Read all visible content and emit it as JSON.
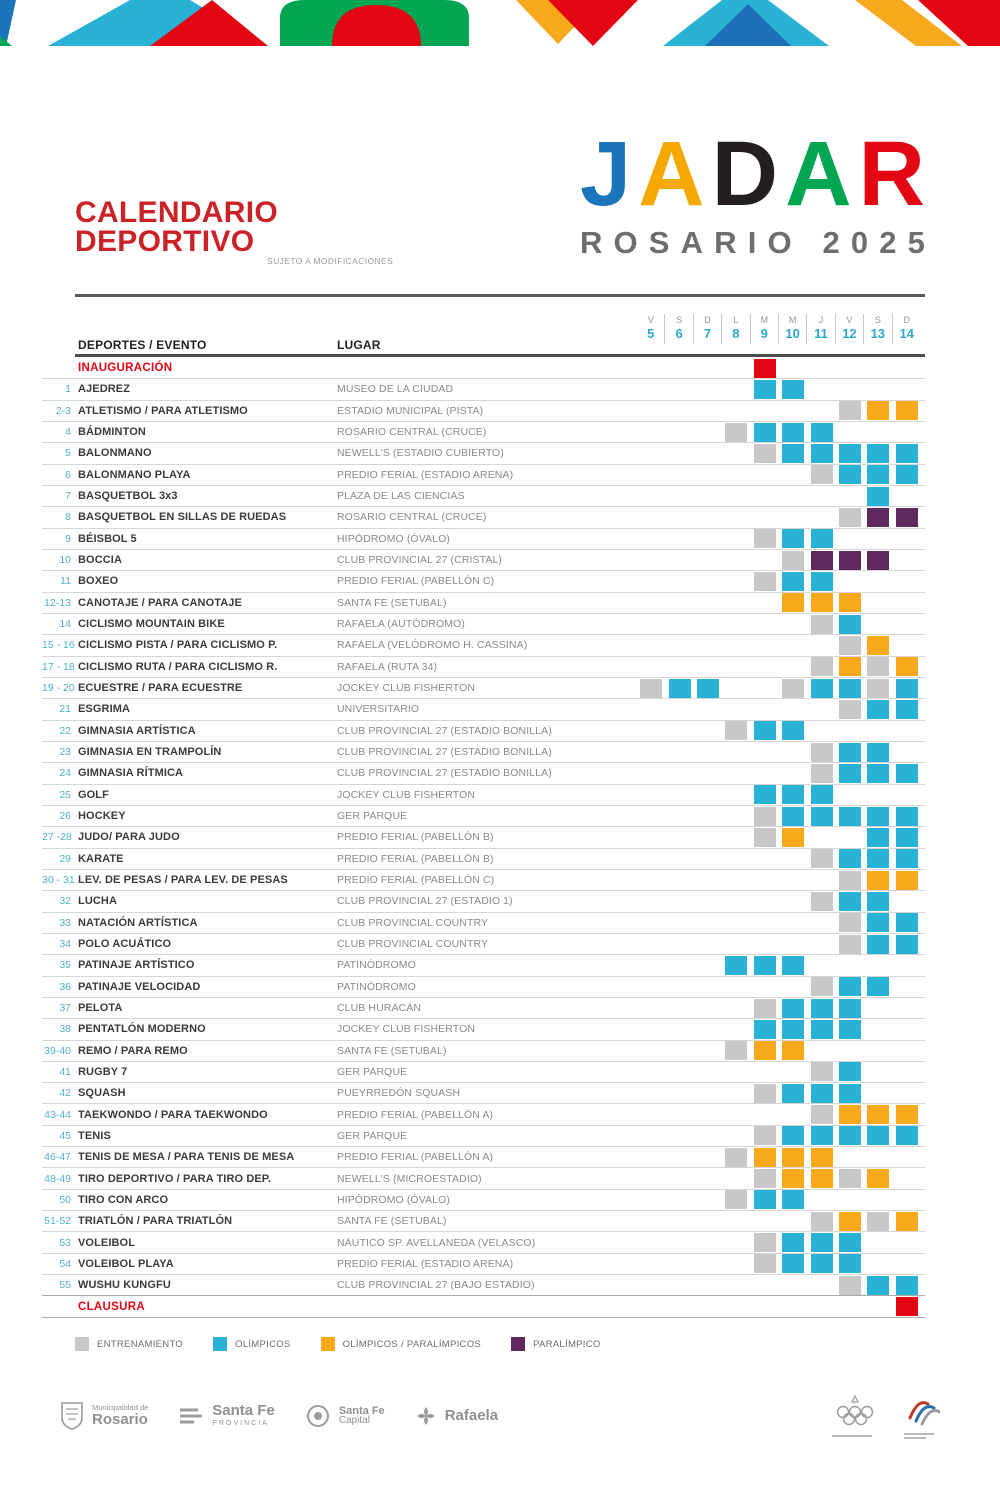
{
  "header": {
    "title_line1": "CALENDARIO",
    "title_line2": "DEPORTIVO",
    "note": "SUJETO A MODIFICACIONES"
  },
  "logo": {
    "letters": [
      {
        "ch": "J",
        "color": "#1B75BB"
      },
      {
        "ch": "A",
        "color": "#F5A800"
      },
      {
        "ch": "D",
        "color": "#231F20"
      },
      {
        "ch": "A",
        "color": "#00A651"
      },
      {
        "ch": "R",
        "color": "#E30613"
      }
    ],
    "subtitle": "ROSARIO 2025"
  },
  "colors": {
    "E": "#C8C8C9",
    "O": "#29B2D5",
    "OP": "#F7A81B",
    "P": "#5E2A5E",
    "R": "#E30613"
  },
  "table": {
    "col_header_deportes": "DEPORTES / EVENTO",
    "col_header_lugar": "LUGAR",
    "days": [
      {
        "dow": "V",
        "num": "5"
      },
      {
        "dow": "S",
        "num": "6"
      },
      {
        "dow": "D",
        "num": "7"
      },
      {
        "dow": "L",
        "num": "8"
      },
      {
        "dow": "M",
        "num": "9"
      },
      {
        "dow": "M",
        "num": "10"
      },
      {
        "dow": "J",
        "num": "11"
      },
      {
        "dow": "V",
        "num": "12"
      },
      {
        "dow": "S",
        "num": "13"
      },
      {
        "dow": "D",
        "num": "14"
      }
    ],
    "rows": [
      {
        "num": "",
        "name": "INAUGURACIÓN",
        "venue": "",
        "special": true,
        "cells": {
          "9": "R"
        }
      },
      {
        "num": "1",
        "name": "AJEDREZ",
        "venue": "MUSEO DE LA CIUDAD",
        "cells": {
          "9": "O",
          "10": "O"
        }
      },
      {
        "num": "2-3",
        "name": "ATLETISMO / PARA ATLETISMO",
        "venue": "ESTADIO MUNICIPAL (PISTA)",
        "cells": {
          "12": "E",
          "13": "OP",
          "14": "OP"
        }
      },
      {
        "num": "4",
        "name": "BÁDMINTON",
        "venue": "ROSARIO CENTRAL (CRUCE)",
        "cells": {
          "8": "E",
          "9": "O",
          "10": "O",
          "11": "O"
        }
      },
      {
        "num": "5",
        "name": "BALONMANO",
        "venue": "NEWELL'S (ESTADIO CUBIERTO)",
        "cells": {
          "9": "E",
          "10": "O",
          "11": "O",
          "12": "O",
          "13": "O",
          "14": "O"
        }
      },
      {
        "num": "6",
        "name": "BALONMANO PLAYA",
        "venue": "PREDIO FERIAL (ESTADIO ARENA)",
        "cells": {
          "11": "E",
          "12": "O",
          "13": "O",
          "14": "O"
        }
      },
      {
        "num": "7",
        "name": "BASQUETBOL 3x3",
        "venue": "PLAZA DE LAS CIENCIAS",
        "cells": {
          "13": "O"
        }
      },
      {
        "num": "8",
        "name": "BASQUETBOL EN SILLAS DE RUEDAS",
        "venue": "ROSARIO CENTRAL (CRUCE)",
        "cells": {
          "12": "E",
          "13": "P",
          "14": "P"
        }
      },
      {
        "num": "9",
        "name": "BÉISBOL 5",
        "venue": "HIPÓDROMO (ÓVALO)",
        "cells": {
          "9": "E",
          "10": "O",
          "11": "O"
        }
      },
      {
        "num": "10",
        "name": "BOCCIA",
        "venue": "CLUB PROVINCIAL 27 (CRISTAL)",
        "cells": {
          "10": "E",
          "11": "P",
          "12": "P",
          "13": "P"
        }
      },
      {
        "num": "11",
        "name": "BOXEO",
        "venue": "PREDIO FERIAL (PABELLÓN C)",
        "cells": {
          "9": "E",
          "10": "O",
          "11": "O"
        }
      },
      {
        "num": "12-13",
        "name": "CANOTAJE / PARA CANOTAJE",
        "venue": "SANTA FE (SETUBAL)",
        "cells": {
          "10": "OP",
          "11": "OP",
          "12": "OP"
        }
      },
      {
        "num": "14",
        "name": "CICLISMO MOUNTAIN BIKE",
        "venue": "RAFAELA (AUTÓDROMO)",
        "cells": {
          "11": "E",
          "12": "O"
        }
      },
      {
        "num": "15 - 16",
        "name": "CICLISMO PISTA / PARA CICLISMO P.",
        "venue": "RAFAELA (VELÓDROMO H. CASSINA)",
        "cells": {
          "12": "E",
          "13": "OP"
        }
      },
      {
        "num": "17 - 18",
        "name": "CICLISMO RUTA / PARA CICLISMO R.",
        "venue": "RAFAELA (RUTA 34)",
        "cells": {
          "11": "E",
          "12": "OP",
          "13": "E",
          "14": "OP"
        }
      },
      {
        "num": "19 - 20",
        "name": "ECUESTRE / PARA ECUESTRE",
        "venue": "JOCKEY CLUB FISHERTON",
        "cells": {
          "5": "E",
          "6": "O",
          "7": "O",
          "10": "E",
          "11": "O",
          "12": "O",
          "13": "E",
          "14": "O"
        }
      },
      {
        "num": "21",
        "name": "ESGRIMA",
        "venue": "UNIVERSITARIO",
        "cells": {
          "12": "E",
          "13": "O",
          "14": "O"
        }
      },
      {
        "num": "22",
        "name": "GIMNASIA ARTÍSTICA",
        "venue": "CLUB PROVINCIAL 27 (ESTADIO BONILLA)",
        "cells": {
          "8": "E",
          "9": "O",
          "10": "O"
        }
      },
      {
        "num": "23",
        "name": "GIMNASIA EN TRAMPOLÍN",
        "venue": "CLUB PROVINCIAL 27 (ESTADIO BONILLA)",
        "cells": {
          "11": "E",
          "12": "O",
          "13": "O"
        }
      },
      {
        "num": "24",
        "name": "GIMNASIA RÍTMICA",
        "venue": "CLUB PROVINCIAL 27 (ESTADIO BONILLA)",
        "cells": {
          "11": "E",
          "12": "O",
          "13": "O",
          "14": "O"
        }
      },
      {
        "num": "25",
        "name": "GOLF",
        "venue": "JOCKEY CLUB FISHERTON",
        "cells": {
          "9": "O",
          "10": "O",
          "11": "O"
        }
      },
      {
        "num": "26",
        "name": "HOCKEY",
        "venue": "GER PARQUE",
        "cells": {
          "9": "E",
          "10": "O",
          "11": "O",
          "12": "O",
          "13": "O",
          "14": "O"
        }
      },
      {
        "num": "27 -28",
        "name": "JUDO/ PARA JUDO",
        "venue": "PREDIO FERIAL (PABELLÓN B)",
        "cells": {
          "9": "E",
          "10": "OP",
          "13": "O",
          "14": "O"
        }
      },
      {
        "num": "29",
        "name": "KARATE",
        "venue": "PREDIO FERIAL (PABELLÓN B)",
        "cells": {
          "11": "E",
          "12": "O",
          "13": "O",
          "14": "O"
        }
      },
      {
        "num": "30 - 31",
        "name": "LEV. DE PESAS / PARA LEV. DE PESAS",
        "venue": "PREDIO FERIAL (PABELLÓN C)",
        "cells": {
          "12": "E",
          "13": "OP",
          "14": "OP"
        }
      },
      {
        "num": "32",
        "name": "LUCHA",
        "venue": "CLUB PROVINCIAL 27 (ESTADIO 1)",
        "cells": {
          "11": "E",
          "12": "O",
          "13": "O"
        }
      },
      {
        "num": "33",
        "name": "NATACIÓN ARTÍSTICA",
        "venue": "CLUB PROVINCIAL COUNTRY",
        "cells": {
          "12": "E",
          "13": "O",
          "14": "O"
        }
      },
      {
        "num": "34",
        "name": "POLO ACUÁTICO",
        "venue": "CLUB PROVINCIAL COUNTRY",
        "cells": {
          "12": "E",
          "13": "O",
          "14": "O"
        }
      },
      {
        "num": "35",
        "name": "PATINAJE ARTÍSTICO",
        "venue": "PATINÓDROMO",
        "cells": {
          "8": "O",
          "9": "O",
          "10": "O"
        }
      },
      {
        "num": "36",
        "name": "PATINAJE VELOCIDAD",
        "venue": "PATINÓDROMO",
        "cells": {
          "11": "E",
          "12": "O",
          "13": "O"
        }
      },
      {
        "num": "37",
        "name": "PELOTA",
        "venue": "CLUB HURACÁN",
        "cells": {
          "9": "E",
          "10": "O",
          "11": "O",
          "12": "O"
        }
      },
      {
        "num": "38",
        "name": "PENTATLÓN MODERNO",
        "venue": "JOCKEY CLUB FISHERTON",
        "cells": {
          "9": "O",
          "10": "O",
          "11": "O",
          "12": "O"
        }
      },
      {
        "num": "39-40",
        "name": "REMO / PARA REMO",
        "venue": "SANTA FE (SETUBAL)",
        "cells": {
          "8": "E",
          "9": "OP",
          "10": "OP"
        }
      },
      {
        "num": "41",
        "name": "RUGBY 7",
        "venue": "GER PARQUE",
        "cells": {
          "11": "E",
          "12": "O"
        }
      },
      {
        "num": "42",
        "name": "SQUASH",
        "venue": "PUEYRREDÓN SQUASH",
        "cells": {
          "9": "E",
          "10": "O",
          "11": "O",
          "12": "O"
        }
      },
      {
        "num": "43-44",
        "name": "TAEKWONDO / PARA TAEKWONDO",
        "venue": "PREDIO FERIAL (PABELLÓN A)",
        "cells": {
          "11": "E",
          "12": "OP",
          "13": "OP",
          "14": "OP"
        }
      },
      {
        "num": "45",
        "name": "TENIS",
        "venue": "GER PARQUE",
        "cells": {
          "9": "E",
          "10": "O",
          "11": "O",
          "12": "O",
          "13": "O",
          "14": "O"
        }
      },
      {
        "num": "46-47",
        "name": "TENIS DE MESA / PARA TENIS DE MESA",
        "venue": "PREDIO FERIAL (PABELLÓN A)",
        "cells": {
          "8": "E",
          "9": "OP",
          "10": "OP",
          "11": "OP"
        }
      },
      {
        "num": "48-49",
        "name": "TIRO DEPORTIVO / PARA TIRO DEP.",
        "venue": "NEWELL'S (MICROESTADIO)",
        "cells": {
          "9": "E",
          "10": "OP",
          "11": "OP",
          "12": "E",
          "13": "OP"
        }
      },
      {
        "num": "50",
        "name": "TIRO CON ARCO",
        "venue": "HIPÓDROMO (ÓVALO)",
        "cells": {
          "8": "E",
          "9": "O",
          "10": "O"
        }
      },
      {
        "num": "51-52",
        "name": "TRIATLÓN / PARA TRIATLÓN",
        "venue": "SANTA FE (SETUBAL)",
        "cells": {
          "11": "E",
          "12": "OP",
          "13": "E",
          "14": "OP"
        }
      },
      {
        "num": "53",
        "name": "VOLEIBOL",
        "venue": "NÁUTICO SP. AVELLANEDA  (VELASCO)",
        "cells": {
          "9": "E",
          "10": "O",
          "11": "O",
          "12": "O"
        }
      },
      {
        "num": "54",
        "name": "VOLEIBOL PLAYA",
        "venue": "PREDIO FERIAL (ESTADIO ARENA)",
        "cells": {
          "9": "E",
          "10": "O",
          "11": "O",
          "12": "O"
        }
      },
      {
        "num": "55",
        "name": "WUSHU KUNGFU",
        "venue": "CLUB PROVINCIAL 27 (BAJO ESTADIO)",
        "cells": {
          "12": "E",
          "13": "O",
          "14": "O"
        }
      },
      {
        "num": "",
        "name": "CLAUSURA",
        "venue": "",
        "special": true,
        "cells": {
          "14": "R"
        }
      }
    ]
  },
  "legend": [
    {
      "code": "E",
      "label": "ENTRENAMIENTO"
    },
    {
      "code": "O",
      "label": "OLÍMPICOS"
    },
    {
      "code": "OP",
      "label": "OLÍMPICOS / PARALÍMPICOS"
    },
    {
      "code": "P",
      "label": "PARALÍMPICO"
    }
  ],
  "footer": {
    "logos": [
      {
        "line1": "Municipalidad de",
        "line2": "Rosario",
        "line3": ""
      },
      {
        "line1": "",
        "line2": "Santa Fe",
        "line3": "PROVINCIA"
      },
      {
        "line1": "Santa Fe",
        "line2": "Capital",
        "line3": ""
      },
      {
        "line1": "",
        "line2": "Rafaela",
        "line3": ""
      }
    ]
  }
}
